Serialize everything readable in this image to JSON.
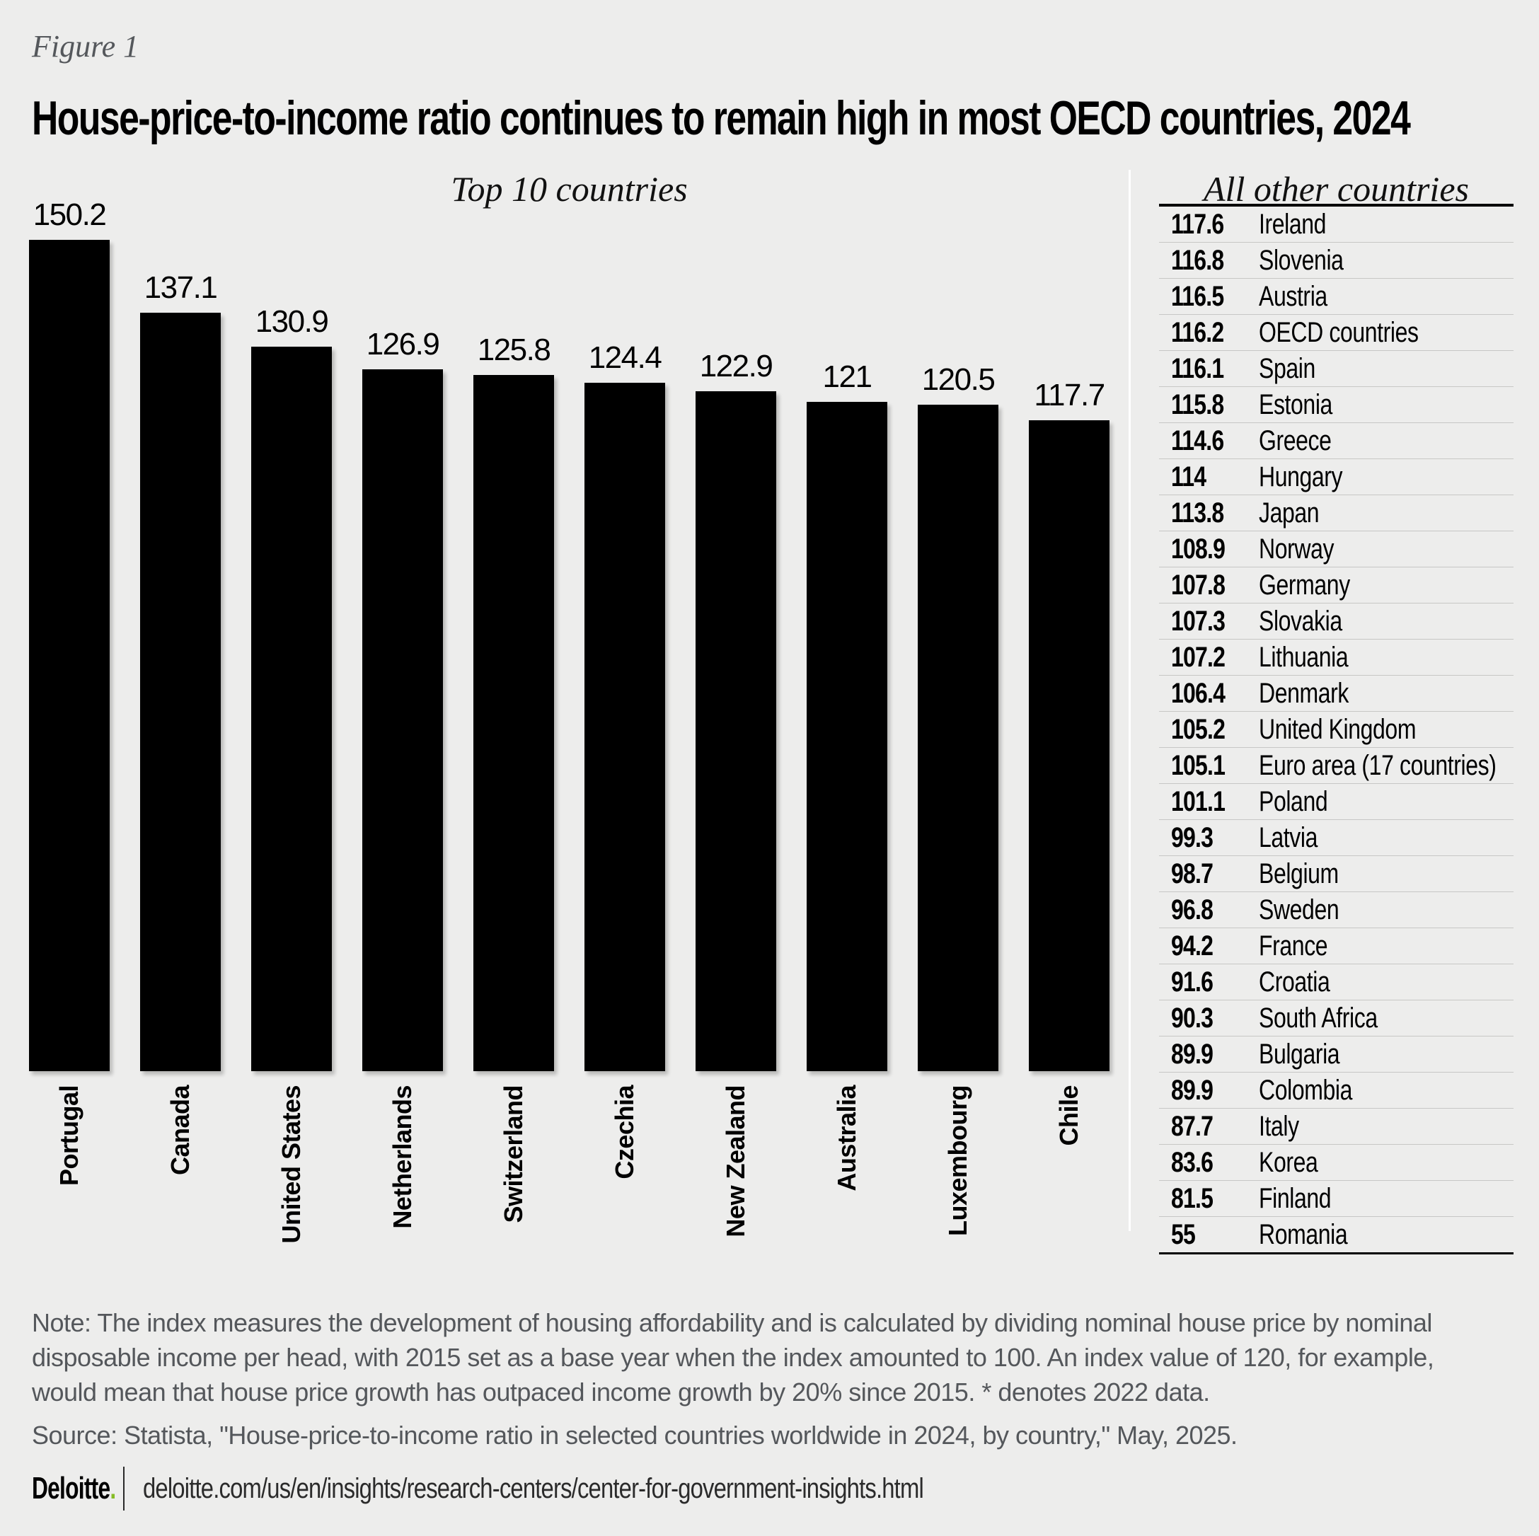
{
  "figure_label": "Figure 1",
  "title": "House-price-to-income ratio continues to remain high in most OECD countries, 2024",
  "chart_data": [
    {
      "type": "bar",
      "title": "Top 10 countries",
      "categories": [
        "Portugal",
        "Canada",
        "United States",
        "Netherlands",
        "Switzerland",
        "Czechia",
        "New Zealand",
        "Australia",
        "Luxembourg",
        "Chile"
      ],
      "values": [
        150.2,
        137.1,
        130.9,
        126.9,
        125.8,
        124.4,
        122.9,
        121,
        120.5,
        117.7
      ],
      "xlabel": "",
      "ylabel": "",
      "ylim": [
        0,
        160
      ],
      "grid": false,
      "legend": false,
      "value_labels_shown": true,
      "bar_color": "#000000"
    },
    {
      "type": "table",
      "title": "All other countries",
      "rows": [
        {
          "value": 117.6,
          "country": "Ireland"
        },
        {
          "value": 116.8,
          "country": "Slovenia"
        },
        {
          "value": 116.5,
          "country": "Austria"
        },
        {
          "value": 116.2,
          "country": "OECD countries"
        },
        {
          "value": 116.1,
          "country": "Spain"
        },
        {
          "value": 115.8,
          "country": "Estonia"
        },
        {
          "value": 114.6,
          "country": "Greece"
        },
        {
          "value": 114,
          "country": "Hungary"
        },
        {
          "value": 113.8,
          "country": "Japan"
        },
        {
          "value": 108.9,
          "country": "Norway"
        },
        {
          "value": 107.8,
          "country": "Germany"
        },
        {
          "value": 107.3,
          "country": "Slovakia"
        },
        {
          "value": 107.2,
          "country": "Lithuania"
        },
        {
          "value": 106.4,
          "country": "Denmark"
        },
        {
          "value": 105.2,
          "country": "United Kingdom"
        },
        {
          "value": 105.1,
          "country": "Euro area (17 countries)"
        },
        {
          "value": 101.1,
          "country": "Poland"
        },
        {
          "value": 99.3,
          "country": "Latvia"
        },
        {
          "value": 98.7,
          "country": "Belgium"
        },
        {
          "value": 96.8,
          "country": "Sweden"
        },
        {
          "value": 94.2,
          "country": "France"
        },
        {
          "value": 91.6,
          "country": "Croatia"
        },
        {
          "value": 90.3,
          "country": "South Africa"
        },
        {
          "value": 89.9,
          "country": "Bulgaria"
        },
        {
          "value": 89.9,
          "country": "Colombia"
        },
        {
          "value": 87.7,
          "country": "Italy"
        },
        {
          "value": 83.6,
          "country": "Korea"
        },
        {
          "value": 81.5,
          "country": "Finland"
        },
        {
          "value": 55,
          "country": "Romania"
        }
      ]
    }
  ],
  "note": "Note:  The index measures the development of housing affordability and is calculated by dividing nominal house price by nominal disposable income per head, with 2015 set as a base year when the index amounted to 100. An index value of 120, for example, would mean that house price growth has outpaced income growth by 20% since 2015. * denotes 2022 data.",
  "source": "Source: Statista, \"House-price-to-income ratio in selected countries worldwide in 2024, by country,\" May, 2025.",
  "footer": {
    "brand": "Deloitte",
    "brand_dot": ".",
    "url": "deloitte.com/us/en/insights/research-centers/center-for-government-insights.html"
  },
  "colors": {
    "background": "#ededec",
    "bar": "#000000",
    "muted_text": "#54575b",
    "accent_green": "#86bc25",
    "row_line": "#c7c7c5",
    "panel_divider": "#ffffff"
  }
}
